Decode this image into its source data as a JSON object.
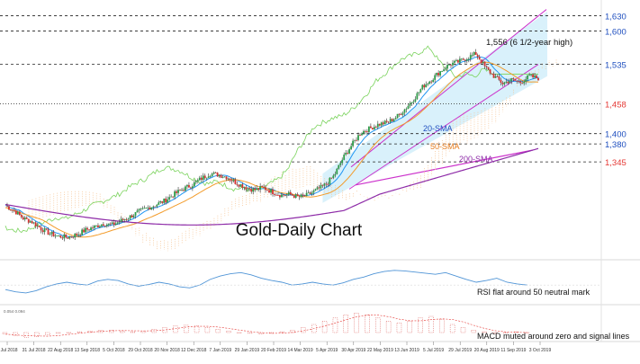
{
  "chart_data": [
    {
      "type": "candlestick",
      "title": "Gold-Daily Chart",
      "price_levels": [
        "1,630",
        "1,600",
        "1,535",
        "1,458",
        "1,400",
        "1,380",
        "1,345"
      ],
      "level_values": [
        1630,
        1600,
        1535,
        1458,
        1400,
        1380,
        1345
      ],
      "ylim": [
        1170,
        1650
      ],
      "annotations": {
        "high": "1,556 (6 1/2-year high)",
        "sma20": "20-SMA",
        "sma50": "50-SMA",
        "sma200": "200-SMA"
      },
      "x_tick_labels": [
        "9 Jul 2018",
        "31 Jul 2018",
        "22 Aug 2018",
        "13 Sep 2018",
        "5 Oct 2018",
        "29 Oct 2018",
        "20 Nov 2018",
        "12 Dec 2018",
        "7 Jan 2019",
        "29 Jan 2019",
        "20 Feb 2019",
        "14 Mar 2019",
        "5 Apr 2019",
        "30 Apr 2019",
        "22 May 2019",
        "13 Jun 2019",
        "5 Jul 2019",
        "29 Jul 2019",
        "20 Aug 2019",
        "11 Sep 2019",
        "3 Oct 2019"
      ],
      "price_path": [
        1260,
        1250,
        1235,
        1228,
        1215,
        1205,
        1200,
        1198,
        1203,
        1212,
        1218,
        1225,
        1222,
        1230,
        1238,
        1248,
        1255,
        1262,
        1270,
        1282,
        1292,
        1300,
        1312,
        1322,
        1320,
        1315,
        1304,
        1296,
        1290,
        1295,
        1287,
        1280,
        1282,
        1276,
        1280,
        1290,
        1300,
        1318,
        1352,
        1378,
        1402,
        1410,
        1418,
        1422,
        1432,
        1448,
        1468,
        1492,
        1506,
        1522,
        1535,
        1540,
        1548,
        1556,
        1530,
        1512,
        1498,
        1505,
        1500,
        1512,
        1508
      ],
      "grid": false,
      "legend": "none"
    },
    {
      "type": "line",
      "series": [
        {
          "name": "RSI"
        }
      ],
      "annotation": "RSI flat around 50 neutral mark",
      "values": [
        42,
        38,
        36,
        40,
        47,
        52,
        55,
        52,
        50,
        57,
        60,
        58,
        52,
        48,
        51,
        55,
        52,
        47,
        45,
        50,
        60,
        66,
        70,
        72,
        68,
        62,
        58,
        55,
        50,
        52,
        55,
        52,
        50,
        54,
        60,
        64,
        70,
        74,
        76,
        75,
        73,
        71,
        69,
        72,
        66,
        60,
        55,
        58,
        62,
        55,
        52,
        50
      ]
    },
    {
      "type": "bar",
      "series": [
        {
          "name": "MACD"
        }
      ],
      "scale_label": "0.054 0.094",
      "annotation": "MACD muted around zero and signal lines",
      "values": [
        -2,
        -4,
        -6,
        -5,
        -3,
        -1,
        0,
        1,
        2,
        3,
        3,
        2,
        1,
        2,
        4,
        6,
        8,
        9,
        8,
        6,
        4,
        2,
        0,
        -1,
        -2,
        -1,
        1,
        3,
        6,
        10,
        14,
        18,
        22,
        24,
        22,
        18,
        14,
        12,
        14,
        18,
        20,
        16,
        10,
        6,
        3,
        1,
        -1,
        0,
        1,
        0
      ]
    }
  ]
}
